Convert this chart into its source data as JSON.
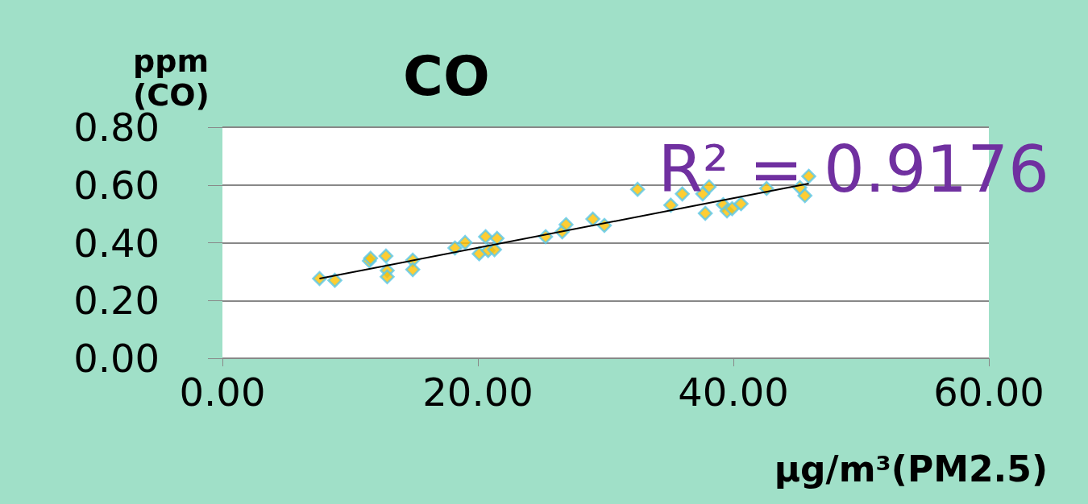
{
  "chart_data": {
    "type": "scatter",
    "title": "CO",
    "ylabel": "ppm\n(CO)",
    "xlabel": "µg/m³(PM2.5)",
    "annotations": [
      "R² = 0.9176"
    ],
    "xlim": [
      0,
      60
    ],
    "xticks": [
      {
        "value": 0,
        "label": "0.00"
      },
      {
        "value": 20,
        "label": "20.00"
      },
      {
        "value": 40,
        "label": "40.00"
      },
      {
        "value": 60,
        "label": "60.00"
      }
    ],
    "ylim": [
      0,
      0.8
    ],
    "yticks": [
      {
        "value": 0,
        "label": "0.00"
      },
      {
        "value": 0.2,
        "label": "0.20"
      },
      {
        "value": 0.4,
        "label": "0.40"
      },
      {
        "value": 0.6,
        "label": "0.60"
      },
      {
        "value": 0.8,
        "label": "0.80"
      }
    ],
    "grid": "y",
    "marker": "diamond",
    "series": [
      {
        "color": "#ffc000",
        "x": [
          7.6,
          8.8,
          11.5,
          11.6,
          12.8,
          12.9,
          12.9,
          14.9,
          14.9,
          18.2,
          19.0,
          20.1,
          20.6,
          20.8,
          21.3,
          21.5,
          25.3,
          26.6,
          26.9,
          29.0,
          29.9,
          32.5,
          35.1,
          36.0,
          37.6,
          37.8,
          38.1,
          39.2,
          39.5,
          39.9,
          40.6,
          42.6,
          45.2,
          45.6,
          45.9
        ],
        "values": [
          0.276,
          0.27,
          0.337,
          0.346,
          0.354,
          0.304,
          0.282,
          0.34,
          0.307,
          0.382,
          0.401,
          0.362,
          0.421,
          0.373,
          0.376,
          0.415,
          0.421,
          0.438,
          0.463,
          0.482,
          0.46,
          0.585,
          0.53,
          0.569,
          0.569,
          0.502,
          0.594,
          0.532,
          0.51,
          0.518,
          0.535,
          0.588,
          0.591,
          0.563,
          0.63
        ]
      },
      {
        "type": "line",
        "color": "#000000",
        "marker": "none",
        "line_style": "solid",
        "x": [
          7.6,
          45.9
        ],
        "values": [
          0.276,
          0.605
        ]
      }
    ]
  }
}
